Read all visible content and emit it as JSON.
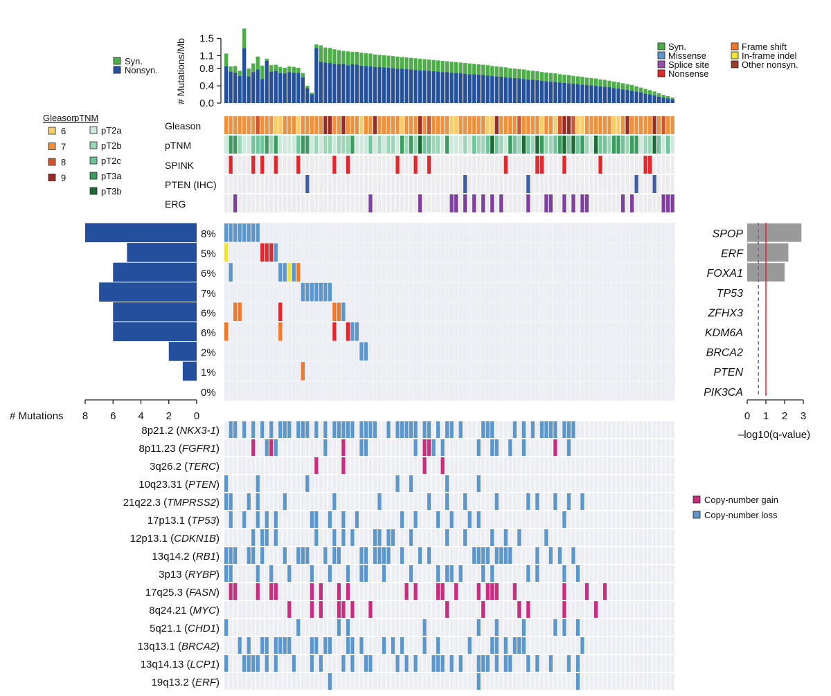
{
  "chart_data": {
    "type": "oncoprint",
    "n_samples": 100,
    "seed": 7,
    "colors": {
      "syn": "#4dae47",
      "nonsyn": "#234f9c",
      "missense": "#5b97cd",
      "splice": "#9651a9",
      "nonsense": "#e2262c",
      "frameshift": "#f0792b",
      "inframe": "#eee43a",
      "other": "#9d3a2a",
      "gain": "#cd2b7f",
      "loss": "#5b97cd",
      "gleason6": "#f7cd6b",
      "gleason7": "#f0903a",
      "gleason8": "#d2542a",
      "gleason9": "#9a2a24",
      "pT2a": "#cfe9dc",
      "pT2b": "#9bd6b7",
      "pT2c": "#6fc49a",
      "pT3a": "#3a9c5f",
      "pT3b": "#1d6a34",
      "spink": "#e2262c",
      "pten_ihc": "#3f5ea8",
      "erg": "#7e3fa0",
      "empty": "#e7e9ef",
      "qbar": "#999999",
      "threshold": "#e2262c",
      "dashed": "#8a5aa8"
    },
    "top_bar": {
      "ylabel": "# Mutations/Mb",
      "ticks": [
        "0.0",
        "0.4",
        "0.8",
        "1.1",
        "1.5"
      ],
      "tick_values": [
        0.0,
        0.4,
        0.8,
        1.1,
        1.5
      ],
      "ylim": [
        0,
        1.75
      ],
      "nonsyn": [
        0.85,
        0.73,
        0.71,
        0.63,
        1.28,
        0.62,
        0.72,
        0.78,
        0.56,
        0.98,
        0.73,
        0.75,
        0.7,
        0.69,
        0.72,
        0.71,
        0.7,
        0.6,
        0.35,
        0.2,
        1.28,
        0.96,
        0.94,
        0.93,
        0.91,
        0.9,
        0.91,
        0.88,
        0.9,
        0.89,
        0.87,
        0.86,
        0.85,
        0.84,
        0.84,
        0.83,
        0.82,
        0.81,
        0.8,
        0.8,
        0.79,
        0.78,
        0.77,
        0.76,
        0.76,
        0.75,
        0.74,
        0.73,
        0.72,
        0.72,
        0.71,
        0.7,
        0.69,
        0.68,
        0.67,
        0.67,
        0.66,
        0.65,
        0.64,
        0.63,
        0.62,
        0.61,
        0.6,
        0.59,
        0.58,
        0.57,
        0.56,
        0.55,
        0.54,
        0.53,
        0.52,
        0.51,
        0.5,
        0.49,
        0.48,
        0.47,
        0.46,
        0.45,
        0.44,
        0.43,
        0.42,
        0.41,
        0.4,
        0.39,
        0.38,
        0.37,
        0.35,
        0.34,
        0.32,
        0.31,
        0.29,
        0.27,
        0.25,
        0.22,
        0.2,
        0.18,
        0.15,
        0.13,
        0.11,
        0.09
      ],
      "syn": [
        0.3,
        0.12,
        0.15,
        0.12,
        0.45,
        0.18,
        0.2,
        0.3,
        0.31,
        0.05,
        0.15,
        0.14,
        0.14,
        0.13,
        0.13,
        0.13,
        0.12,
        0.1,
        0.05,
        0.04,
        0.08,
        0.38,
        0.35,
        0.35,
        0.34,
        0.33,
        0.3,
        0.32,
        0.29,
        0.3,
        0.3,
        0.3,
        0.3,
        0.29,
        0.28,
        0.28,
        0.28,
        0.28,
        0.28,
        0.27,
        0.27,
        0.27,
        0.27,
        0.27,
        0.26,
        0.26,
        0.26,
        0.26,
        0.26,
        0.25,
        0.25,
        0.25,
        0.25,
        0.25,
        0.25,
        0.24,
        0.24,
        0.24,
        0.24,
        0.23,
        0.23,
        0.23,
        0.23,
        0.22,
        0.22,
        0.22,
        0.22,
        0.21,
        0.21,
        0.21,
        0.2,
        0.2,
        0.2,
        0.2,
        0.19,
        0.19,
        0.19,
        0.18,
        0.18,
        0.18,
        0.17,
        0.17,
        0.17,
        0.16,
        0.16,
        0.15,
        0.15,
        0.14,
        0.14,
        0.13,
        0.13,
        0.12,
        0.11,
        0.11,
        0.1,
        0.09,
        0.08,
        0.06,
        0.05,
        0.04
      ]
    },
    "top_legend": [
      {
        "label": "Syn.",
        "color_key": "syn"
      },
      {
        "label": "Nonsyn.",
        "color_key": "nonsyn"
      }
    ],
    "mutation_legend": [
      {
        "label": "Syn.",
        "color_key": "syn"
      },
      {
        "label": "Missense",
        "color_key": "missense"
      },
      {
        "label": "Splice site",
        "color_key": "splice"
      },
      {
        "label": "Nonsense",
        "color_key": "nonsense"
      },
      {
        "label": "Frame shift",
        "color_key": "frameshift"
      },
      {
        "label": "In-frame indel",
        "color_key": "inframe"
      },
      {
        "label": "Other nonsyn.",
        "color_key": "other"
      }
    ],
    "gleason_legend": {
      "title": "Gleason",
      "items": [
        {
          "label": "6",
          "color_key": "gleason6"
        },
        {
          "label": "7",
          "color_key": "gleason7"
        },
        {
          "label": "8",
          "color_key": "gleason8"
        },
        {
          "label": "9",
          "color_key": "gleason9"
        }
      ]
    },
    "ptnm_legend": {
      "title": "pTNM",
      "items": [
        {
          "label": "pT2a",
          "color_key": "pT2a"
        },
        {
          "label": "pT2b",
          "color_key": "pT2b"
        },
        {
          "label": "pT2c",
          "color_key": "pT2c"
        },
        {
          "label": "pT3a",
          "color_key": "pT3a"
        },
        {
          "label": "pT3b",
          "color_key": "pT3b"
        }
      ]
    },
    "clinical_tracks": [
      {
        "label": "Gleason",
        "kind": "gleason"
      },
      {
        "label": "pTNM",
        "kind": "ptnm"
      },
      {
        "label": "SPINK",
        "kind": "spink",
        "hits": [
          1,
          6,
          8,
          11,
          16,
          24,
          27,
          38,
          42,
          45,
          62,
          69,
          70,
          75,
          83,
          93,
          94
        ]
      },
      {
        "label": "PTEN (IHC)",
        "kind": "pten_ihc",
        "hits": [
          18,
          53,
          67,
          91,
          95
        ]
      },
      {
        "label": "ERG",
        "kind": "erg",
        "hits": [
          2,
          32,
          43,
          50,
          51,
          53,
          55,
          57,
          59,
          61,
          67,
          71,
          72,
          75,
          77,
          79,
          80,
          88,
          90,
          97,
          98,
          99
        ]
      }
    ],
    "genes": [
      {
        "name": "SPOP",
        "pct": "8%",
        "count": 8,
        "q": 2.9,
        "cells": [
          [
            0,
            "missense"
          ],
          [
            1,
            "missense"
          ],
          [
            2,
            "missense"
          ],
          [
            3,
            "missense"
          ],
          [
            4,
            "missense"
          ],
          [
            5,
            "missense"
          ],
          [
            6,
            "missense"
          ],
          [
            7,
            "missense"
          ]
        ]
      },
      {
        "name": "ERF",
        "pct": "5%",
        "count": 5,
        "q": 2.2,
        "cells": [
          [
            0,
            "inframe"
          ],
          [
            8,
            "nonsense"
          ],
          [
            9,
            "nonsense"
          ],
          [
            10,
            "nonsense"
          ],
          [
            11,
            "missense"
          ]
        ]
      },
      {
        "name": "FOXA1",
        "pct": "6%",
        "count": 6,
        "q": 2.0,
        "cells": [
          [
            1,
            "missense"
          ],
          [
            12,
            "missense"
          ],
          [
            13,
            "missense"
          ],
          [
            14,
            "inframe"
          ],
          [
            15,
            "missense"
          ],
          [
            16,
            "frameshift"
          ]
        ]
      },
      {
        "name": "TP53",
        "pct": "7%",
        "count": 7,
        "q": 0,
        "cells": [
          [
            17,
            "missense"
          ],
          [
            18,
            "missense"
          ],
          [
            19,
            "missense"
          ],
          [
            20,
            "missense"
          ],
          [
            21,
            "missense"
          ],
          [
            22,
            "missense"
          ],
          [
            23,
            "missense"
          ]
        ]
      },
      {
        "name": "ZFHX3",
        "pct": "6%",
        "count": 6,
        "q": 0,
        "cells": [
          [
            2,
            "frameshift"
          ],
          [
            3,
            "frameshift"
          ],
          [
            12,
            "nonsense"
          ],
          [
            24,
            "frameshift"
          ],
          [
            25,
            "frameshift"
          ],
          [
            26,
            "missense"
          ]
        ]
      },
      {
        "name": "KDM6A",
        "pct": "6%",
        "count": 6,
        "q": 0,
        "cells": [
          [
            0,
            "frameshift"
          ],
          [
            12,
            "frameshift"
          ],
          [
            24,
            "nonsense"
          ],
          [
            27,
            "nonsense"
          ],
          [
            28,
            "missense"
          ],
          [
            29,
            "missense"
          ]
        ]
      },
      {
        "name": "BRCA2",
        "pct": "2%",
        "count": 2,
        "q": 0,
        "cells": [
          [
            30,
            "missense"
          ],
          [
            31,
            "missense"
          ]
        ]
      },
      {
        "name": "PTEN",
        "pct": "1%",
        "count": 1,
        "q": 0,
        "cells": [
          [
            17,
            "frameshift"
          ]
        ]
      },
      {
        "name": "PIK3CA",
        "pct": "0%",
        "count": 0,
        "q": 0,
        "cells": []
      }
    ],
    "left_axis": {
      "label": "# Mutations",
      "ticks": [
        "8",
        "6",
        "4",
        "2",
        "0"
      ],
      "tick_values": [
        8,
        6,
        4,
        2,
        0
      ]
    },
    "right_axis": {
      "label": "–log10(q-value)",
      "ticks": [
        "0",
        "1",
        "2",
        "3"
      ],
      "tick_values": [
        0,
        1,
        2,
        3
      ],
      "threshold": 1.0,
      "dashed": 0.6
    },
    "cna_rows": [
      {
        "band": "8p21.2",
        "gene": "NKX3-1",
        "type": "loss",
        "n": 48
      },
      {
        "band": "8p11.23",
        "gene": "FGFR1",
        "type": "mixed",
        "n": 20
      },
      {
        "band": "3q26.2",
        "gene": "TERC",
        "type": "gain",
        "n": 4
      },
      {
        "band": "10q23.31",
        "gene": "PTEN",
        "type": "loss",
        "n": 7
      },
      {
        "band": "21q22.3",
        "gene": "TMPRSS2",
        "type": "loss",
        "n": 16
      },
      {
        "band": "17p13.1",
        "gene": "TP53",
        "type": "loss",
        "n": 17
      },
      {
        "band": "12p13.1",
        "gene": "CDKN1B",
        "type": "loss",
        "n": 19
      },
      {
        "band": "13q14.2",
        "gene": "RB1",
        "type": "loss",
        "n": 34
      },
      {
        "band": "3p13",
        "gene": "RYBP",
        "type": "loss",
        "n": 22
      },
      {
        "band": "17q25.3",
        "gene": "FASN",
        "type": "gain",
        "n": 22
      },
      {
        "band": "8q24.21",
        "gene": "MYC",
        "type": "gain",
        "n": 13
      },
      {
        "band": "5q21.1",
        "gene": "CHD1",
        "type": "loss",
        "n": 11
      },
      {
        "band": "13q13.1",
        "gene": "BRCA2",
        "type": "loss",
        "n": 28
      },
      {
        "band": "13q14.13",
        "gene": "LCP1",
        "type": "loss",
        "n": 33
      },
      {
        "band": "19q13.2",
        "gene": "ERF",
        "type": "loss",
        "n": 3
      }
    ],
    "cna_legend": [
      {
        "label": "Copy-number gain",
        "color_key": "gain"
      },
      {
        "label": "Copy-number loss",
        "color_key": "loss"
      }
    ]
  }
}
